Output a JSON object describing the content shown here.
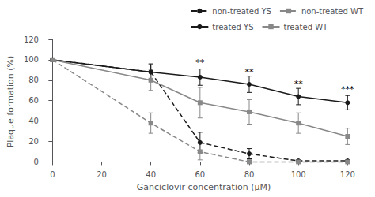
{
  "chart_data": {
    "type": "line",
    "xlabel": "Ganciclovir concentration (μM)",
    "ylabel": "Plaque formation (%)",
    "x": [
      0,
      40,
      60,
      80,
      100,
      120
    ],
    "xlim": [
      -3,
      126
    ],
    "xticks": [
      0,
      20,
      40,
      60,
      80,
      100,
      120
    ],
    "ylim": [
      -2,
      120
    ],
    "yticks": [
      0,
      20,
      40,
      60,
      80,
      100,
      120
    ],
    "grid": false,
    "legend": "upper right",
    "series": [
      {
        "name": "non-treated YS",
        "color": "#1a1a1a",
        "marker": "circle",
        "line_style": "dashed",
        "values": [
          100,
          88,
          19,
          8,
          1,
          1
        ],
        "errors": [
          0,
          8,
          10,
          5,
          1,
          1
        ]
      },
      {
        "name": "non-treated WT",
        "color": "#888888",
        "marker": "square",
        "line_style": "dashed",
        "values": [
          100,
          38,
          10,
          0,
          0,
          0
        ],
        "errors": [
          0,
          10,
          8,
          2,
          1,
          1
        ]
      },
      {
        "name": "treated YS",
        "color": "#1a1a1a",
        "marker": "circle",
        "line_style": "solid",
        "values": [
          100,
          88,
          83,
          76,
          64,
          58
        ],
        "errors": [
          0,
          7,
          8,
          8,
          8,
          7
        ]
      },
      {
        "name": "treated WT",
        "color": "#888888",
        "marker": "square",
        "line_style": "solid",
        "values": [
          100,
          80,
          58,
          49,
          38,
          25
        ],
        "errors": [
          0,
          10,
          15,
          12,
          10,
          8
        ]
      }
    ],
    "annotations": [
      {
        "x": 60,
        "y": 93,
        "text": "**"
      },
      {
        "x": 80,
        "y": 84,
        "text": "**"
      },
      {
        "x": 100,
        "y": 72,
        "text": "**"
      },
      {
        "x": 120,
        "y": 67,
        "text": "***"
      }
    ]
  }
}
